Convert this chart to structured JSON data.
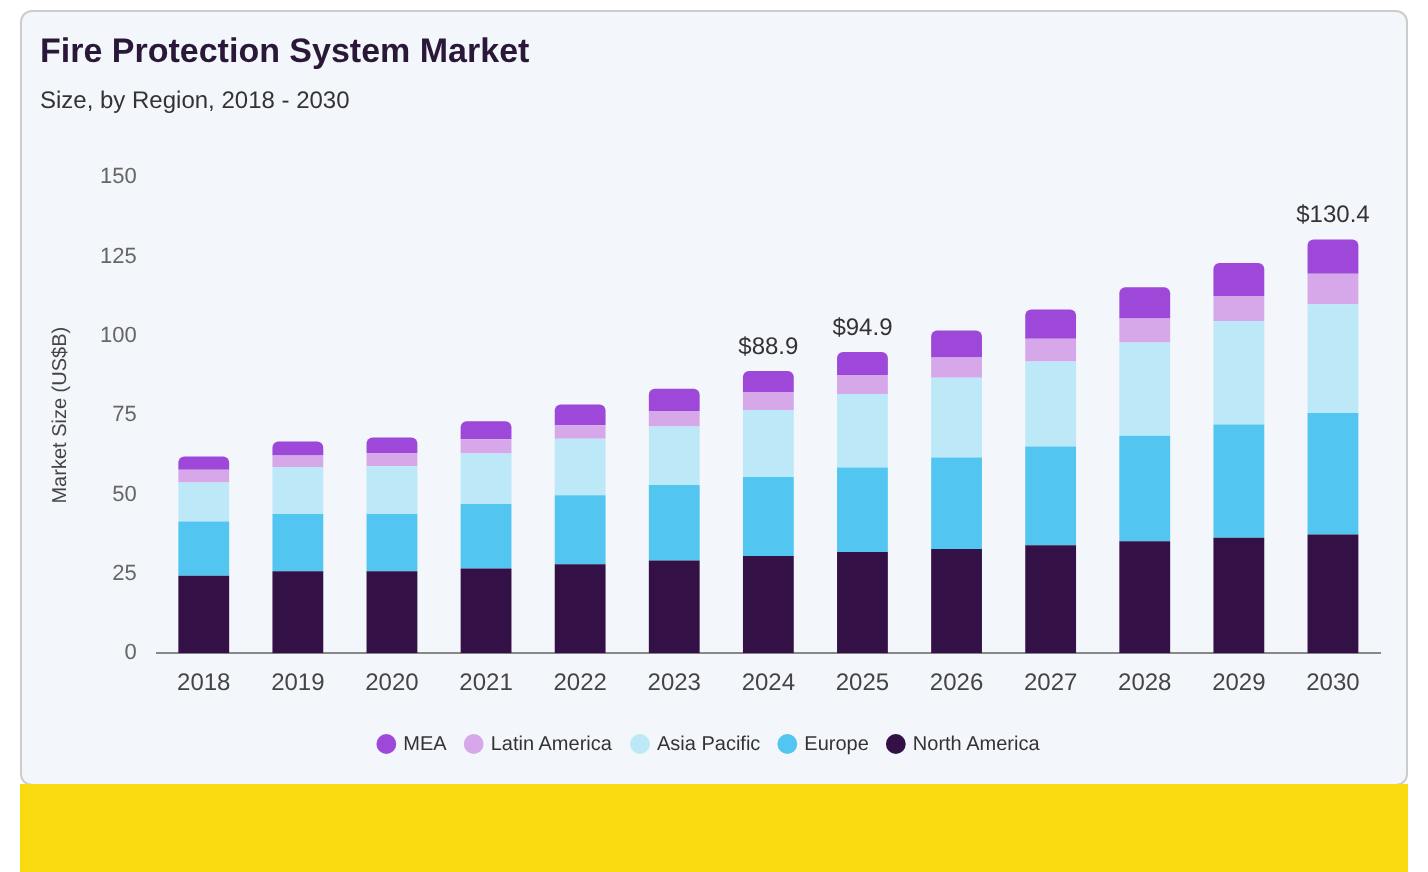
{
  "chart_data": {
    "type": "bar",
    "title": "Fire Protection System Market",
    "subtitle": "Size, by Region, 2018 - 2030",
    "ylabel": "Market Size (US$B)",
    "categories": [
      "2018",
      "2019",
      "2020",
      "2021",
      "2022",
      "2023",
      "2024",
      "2025",
      "2026",
      "2027",
      "2028",
      "2029",
      "2030"
    ],
    "stacked": true,
    "ylim": [
      0,
      150
    ],
    "yticks": [
      0,
      25,
      50,
      75,
      100,
      125,
      150
    ],
    "grid": false,
    "legend": "bottom",
    "series": [
      {
        "name": "North America",
        "color": "#331046",
        "values": [
          24.4,
          25.8,
          25.8,
          26.7,
          28.0,
          29.2,
          30.6,
          31.9,
          32.8,
          34.0,
          35.3,
          36.4,
          37.4
        ]
      },
      {
        "name": "Europe",
        "color": "#52c6f0",
        "values": [
          17.1,
          18.1,
          18.1,
          20.3,
          21.8,
          23.8,
          24.9,
          26.6,
          28.9,
          31.1,
          33.2,
          35.7,
          38.3
        ]
      },
      {
        "name": "Asia Pacific",
        "color": "#bde8f8",
        "values": [
          12.3,
          14.8,
          15.0,
          15.9,
          17.8,
          18.4,
          21.1,
          23.2,
          25.1,
          26.8,
          29.4,
          32.6,
          34.3
        ]
      },
      {
        "name": "Latin America",
        "color": "#d6a8ea",
        "values": [
          4.0,
          3.6,
          4.2,
          4.5,
          4.2,
          4.9,
          5.7,
          6.0,
          6.4,
          7.2,
          7.6,
          7.9,
          9.6
        ]
      },
      {
        "name": "MEA",
        "color": "#9d48d8",
        "values": [
          4.2,
          4.4,
          4.9,
          5.7,
          6.6,
          7.0,
          6.6,
          7.2,
          8.5,
          9.2,
          9.8,
          10.4,
          10.8
        ]
      }
    ],
    "totals": [
      null,
      null,
      null,
      null,
      null,
      null,
      "$88.9",
      "$94.9",
      null,
      null,
      null,
      null,
      "$130.4"
    ]
  }
}
